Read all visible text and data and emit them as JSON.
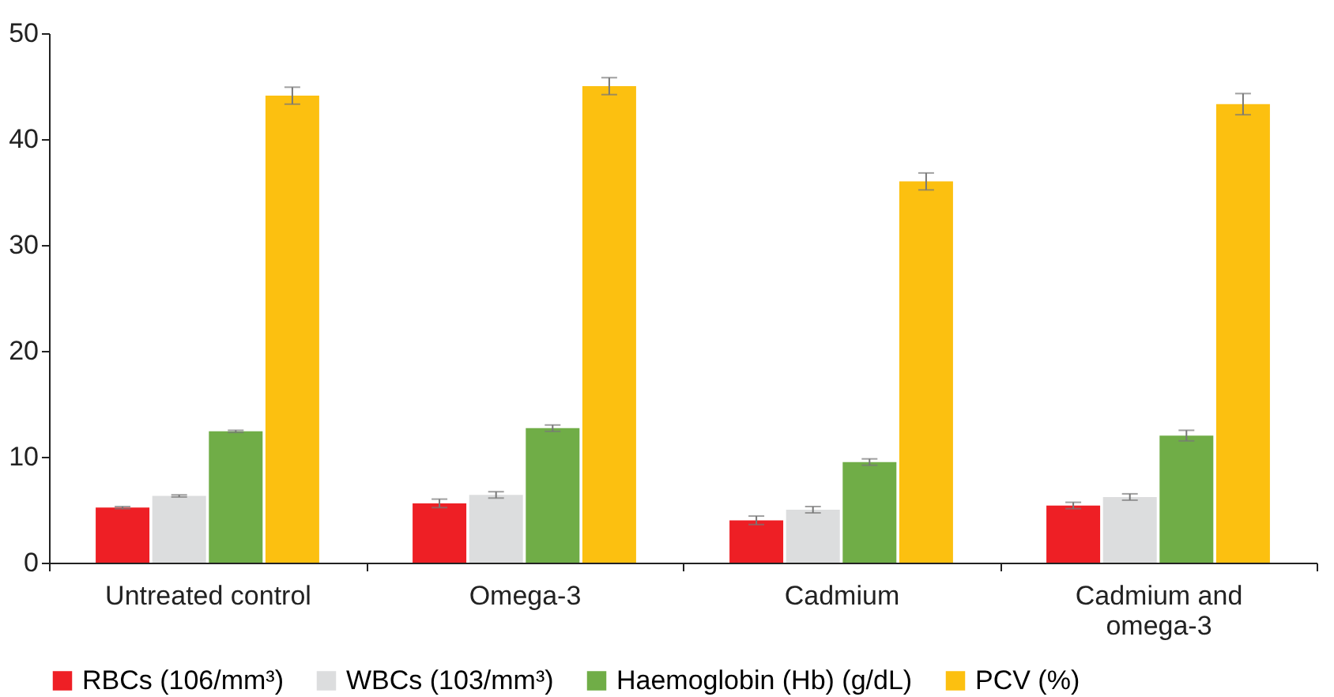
{
  "chart_data": {
    "type": "bar",
    "categories": [
      "Untreated control",
      "Omega-3",
      "Cadmium",
      "Cadmium and omega-3"
    ],
    "series": [
      {
        "name": "RBCs (106/mm³)",
        "color": "#ee1f25",
        "values": [
          5.2,
          5.6,
          4.0,
          5.4
        ],
        "errors": [
          0.1,
          0.4,
          0.4,
          0.3
        ]
      },
      {
        "name": "WBCs (103/mm³)",
        "color": "#dcddde",
        "values": [
          6.3,
          6.4,
          5.0,
          6.2
        ],
        "errors": [
          0.1,
          0.3,
          0.3,
          0.3
        ]
      },
      {
        "name": "Haemoglobin (Hb) (g/dL)",
        "color": "#70ad47",
        "values": [
          12.4,
          12.7,
          9.5,
          12.0
        ],
        "errors": [
          0.1,
          0.3,
          0.3,
          0.5
        ]
      },
      {
        "name": "PCV (%)",
        "color": "#fcc010",
        "values": [
          44.1,
          45.0,
          36.0,
          43.3
        ],
        "errors": [
          0.8,
          0.8,
          0.8,
          1.0
        ]
      }
    ],
    "ylim": [
      0,
      50
    ],
    "yticks": [
      0,
      10,
      20,
      30,
      40,
      50
    ],
    "grid": false,
    "legend": "bottom"
  }
}
